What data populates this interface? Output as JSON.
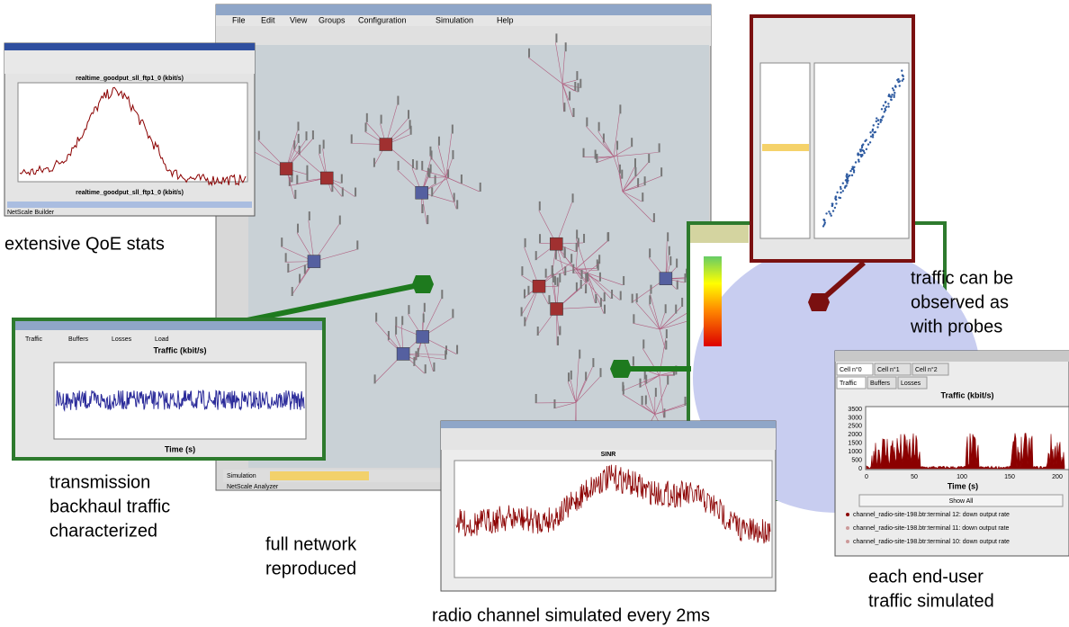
{
  "captions": {
    "qoe": "extensive QoE stats",
    "backhaul": [
      "transmission",
      "backhaul traffic",
      "characterized"
    ],
    "network": [
      "full network",
      "reproduced"
    ],
    "radio": "radio channel simulated every 2ms",
    "probes": [
      "traffic can be",
      "observed as",
      "with probes"
    ],
    "enduser": [
      "each end-user",
      "traffic simulated"
    ]
  },
  "qoe_window": {
    "chart_title": "realtime_goodput_sll_ftp1_0 (kbit/s)",
    "x_label": "realtime_goodput_sll_ftp1_0 (kbit/s)",
    "status": "NetScale Builder"
  },
  "backhaul_window": {
    "tabs": [
      "Traffic",
      "Buffers",
      "Losses",
      "Load"
    ],
    "chart_title": "Traffic (kbit/s)",
    "x_label": "Time (s)"
  },
  "main_window": {
    "menu": [
      "File",
      "Edit",
      "View",
      "Groups",
      "Configuration",
      "Simulation",
      "Help"
    ],
    "status": "Simulation",
    "footer": "NetScale Analyzer"
  },
  "sinr_window": {
    "chart_title": "SINR"
  },
  "cell_window": {
    "cells": [
      "Cell n°0",
      "Cell n°1",
      "Cell n°2"
    ],
    "tabs": [
      "Traffic",
      "Buffers",
      "Losses"
    ],
    "chart_title": "Traffic (kbit/s)",
    "yticks": [
      3500,
      3000,
      2500,
      2000,
      1500,
      1000,
      500,
      0
    ],
    "xticks": [
      0,
      50,
      100,
      150,
      200
    ],
    "x_label": "Time (s)",
    "button": "Show All",
    "legend": [
      "channel_radio-site-198.btr:terminal 12: down output rate",
      "channel_radio-site-198.btr:terminal 11: down output rate",
      "channel_radio-site-198.btr:terminal 10: down output rate"
    ]
  }
}
